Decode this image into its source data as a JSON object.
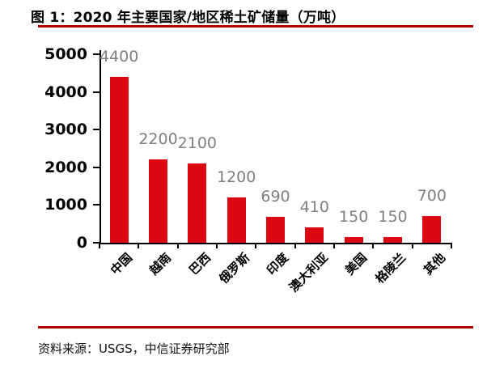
{
  "header": {
    "figure_label": "图 1",
    "title": "图 1：2020 年主要国家/地区稀土矿储量（万吨）"
  },
  "chart_data": {
    "type": "bar",
    "title": "2020 年主要国家/地区稀土矿储量（万吨）",
    "categories": [
      "中国",
      "越南",
      "巴西",
      "俄罗斯",
      "印度",
      "澳大利亚",
      "美国",
      "格陵兰",
      "其他"
    ],
    "values": [
      4400,
      2200,
      2100,
      1200,
      690,
      410,
      150,
      150,
      700
    ],
    "value_labels": [
      "4400",
      "2200",
      "2100",
      "1200",
      "690",
      "410",
      "150",
      "150",
      "700"
    ],
    "xlabel": "",
    "ylabel": "",
    "unit": "万吨",
    "ylim": [
      0,
      5000
    ],
    "yticks": [
      0,
      1000,
      2000,
      3000,
      4000,
      5000
    ],
    "grid": false,
    "legend": "none",
    "bar_color": "#DB0712",
    "value_label_color": "#7F7F7F",
    "axis_color": "#000000"
  },
  "footer": {
    "source": "资料来源：USGS，中信证券研究部"
  },
  "colors": {
    "accent_rule_red": "#B00000",
    "bar_red": "#DB0712",
    "label_gray": "#7F7F7F",
    "text_black": "#000000",
    "background": "#FFFFFF"
  }
}
